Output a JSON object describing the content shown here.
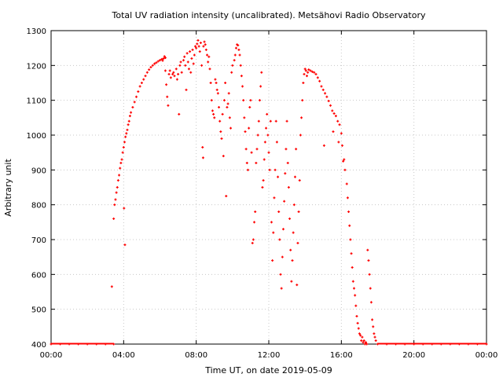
{
  "chart_data": {
    "type": "scatter",
    "title": "Total UV radiation intensity (uncalibrated). Metsähovi Radio Observatory",
    "xlabel": "Time UT, on date 2019-05-09",
    "ylabel": "Arbitrary unit",
    "x_unit": "hours UT",
    "xlim": [
      0,
      24
    ],
    "ylim": [
      400,
      1300
    ],
    "x_ticks": [
      {
        "value": 0,
        "label": "00:00"
      },
      {
        "value": 4,
        "label": "04:00"
      },
      {
        "value": 8,
        "label": "08:00"
      },
      {
        "value": 12,
        "label": "12:00"
      },
      {
        "value": 16,
        "label": "16:00"
      },
      {
        "value": 20,
        "label": "20:00"
      },
      {
        "value": 24,
        "label": "00:00"
      }
    ],
    "y_ticks": [
      {
        "value": 400,
        "label": "400"
      },
      {
        "value": 500,
        "label": "500"
      },
      {
        "value": 600,
        "label": "600"
      },
      {
        "value": 700,
        "label": "700"
      },
      {
        "value": 800,
        "label": "800"
      },
      {
        "value": 900,
        "label": "900"
      },
      {
        "value": 1000,
        "label": "1000"
      },
      {
        "value": 1100,
        "label": "1100"
      },
      {
        "value": 1200,
        "label": "1200"
      },
      {
        "value": 1300,
        "label": "1300"
      }
    ],
    "grid": true,
    "marker_color": "#ff0000",
    "series": [
      {
        "values": [
          [
            0.0,
            400
          ],
          [
            0.5,
            400
          ],
          [
            1.0,
            400
          ],
          [
            1.5,
            400
          ],
          [
            2.0,
            400
          ],
          [
            2.5,
            400
          ],
          [
            3.0,
            400
          ],
          [
            3.45,
            400
          ],
          [
            3.35,
            565
          ],
          [
            3.45,
            760
          ],
          [
            3.5,
            800
          ],
          [
            3.55,
            815
          ],
          [
            3.6,
            835
          ],
          [
            3.65,
            850
          ],
          [
            3.7,
            870
          ],
          [
            3.75,
            885
          ],
          [
            3.8,
            905
          ],
          [
            3.85,
            920
          ],
          [
            3.9,
            930
          ],
          [
            3.95,
            950
          ],
          [
            4.0,
            965
          ],
          [
            4.05,
            980
          ],
          [
            4.02,
            790
          ],
          [
            4.07,
            685
          ],
          [
            4.1,
            995
          ],
          [
            4.15,
            1005
          ],
          [
            4.2,
            1015
          ],
          [
            4.25,
            1030
          ],
          [
            4.3,
            1040
          ],
          [
            4.35,
            1055
          ],
          [
            4.4,
            1065
          ],
          [
            4.5,
            1080
          ],
          [
            4.6,
            1095
          ],
          [
            4.7,
            1110
          ],
          [
            4.8,
            1125
          ],
          [
            4.9,
            1140
          ],
          [
            5.0,
            1150
          ],
          [
            5.1,
            1160
          ],
          [
            5.2,
            1170
          ],
          [
            5.3,
            1180
          ],
          [
            5.4,
            1188
          ],
          [
            5.5,
            1195
          ],
          [
            5.6,
            1200
          ],
          [
            5.7,
            1205
          ],
          [
            5.8,
            1208
          ],
          [
            5.9,
            1212
          ],
          [
            6.0,
            1215
          ],
          [
            6.1,
            1218
          ],
          [
            6.2,
            1220
          ],
          [
            6.3,
            1222
          ],
          [
            6.25,
            1226
          ],
          [
            6.15,
            1214
          ],
          [
            6.3,
            1185
          ],
          [
            6.35,
            1145
          ],
          [
            6.4,
            1110
          ],
          [
            6.45,
            1085
          ],
          [
            6.5,
            1175
          ],
          [
            6.55,
            1185
          ],
          [
            6.6,
            1165
          ],
          [
            6.7,
            1175
          ],
          [
            6.75,
            1180
          ],
          [
            6.8,
            1170
          ],
          [
            6.9,
            1190
          ],
          [
            6.95,
            1160
          ],
          [
            7.0,
            1175
          ],
          [
            7.05,
            1060
          ],
          [
            7.1,
            1200
          ],
          [
            7.15,
            1210
          ],
          [
            7.2,
            1180
          ],
          [
            7.3,
            1215
          ],
          [
            7.35,
            1225
          ],
          [
            7.4,
            1200
          ],
          [
            7.45,
            1130
          ],
          [
            7.5,
            1235
          ],
          [
            7.55,
            1210
          ],
          [
            7.6,
            1190
          ],
          [
            7.65,
            1240
          ],
          [
            7.7,
            1180
          ],
          [
            7.75,
            1220
          ],
          [
            7.8,
            1245
          ],
          [
            7.85,
            1205
          ],
          [
            7.9,
            1230
          ],
          [
            7.95,
            1255
          ],
          [
            8.0,
            1250
          ],
          [
            8.05,
            1262
          ],
          [
            8.1,
            1272
          ],
          [
            8.15,
            1255
          ],
          [
            8.2,
            1240
          ],
          [
            8.25,
            1265
          ],
          [
            8.3,
            1200
          ],
          [
            8.35,
            965
          ],
          [
            8.38,
            935
          ],
          [
            8.4,
            1255
          ],
          [
            8.45,
            1268
          ],
          [
            8.5,
            1260
          ],
          [
            8.55,
            1245
          ],
          [
            8.6,
            1230
          ],
          [
            8.65,
            1210
          ],
          [
            8.7,
            1225
          ],
          [
            8.75,
            1190
          ],
          [
            8.8,
            1150
          ],
          [
            8.85,
            1100
          ],
          [
            8.9,
            1070
          ],
          [
            8.95,
            1060
          ],
          [
            9.0,
            1050
          ],
          [
            9.05,
            1160
          ],
          [
            9.1,
            1150
          ],
          [
            9.15,
            1130
          ],
          [
            9.2,
            1120
          ],
          [
            9.25,
            1080
          ],
          [
            9.3,
            1040
          ],
          [
            9.35,
            1010
          ],
          [
            9.4,
            990
          ],
          [
            9.45,
            1060
          ],
          [
            9.5,
            940
          ],
          [
            9.55,
            1100
          ],
          [
            9.6,
            1150
          ],
          [
            9.65,
            825
          ],
          [
            9.7,
            1080
          ],
          [
            9.75,
            1090
          ],
          [
            9.8,
            1120
          ],
          [
            9.85,
            1050
          ],
          [
            9.9,
            1020
          ],
          [
            9.95,
            1180
          ],
          [
            10.0,
            1200
          ],
          [
            10.1,
            1215
          ],
          [
            10.15,
            1230
          ],
          [
            10.2,
            1250
          ],
          [
            10.25,
            1260
          ],
          [
            10.3,
            1258
          ],
          [
            10.35,
            1245
          ],
          [
            10.4,
            1230
          ],
          [
            10.45,
            1200
          ],
          [
            10.5,
            1170
          ],
          [
            10.55,
            1140
          ],
          [
            10.6,
            1100
          ],
          [
            10.65,
            1050
          ],
          [
            10.7,
            1010
          ],
          [
            10.75,
            960
          ],
          [
            10.8,
            920
          ],
          [
            10.85,
            900
          ],
          [
            10.9,
            1020
          ],
          [
            10.95,
            1080
          ],
          [
            11.0,
            1100
          ],
          [
            11.05,
            950
          ],
          [
            11.1,
            690
          ],
          [
            11.15,
            700
          ],
          [
            11.2,
            750
          ],
          [
            11.25,
            780
          ],
          [
            11.3,
            920
          ],
          [
            11.35,
            960
          ],
          [
            11.4,
            1000
          ],
          [
            11.45,
            1040
          ],
          [
            11.5,
            1100
          ],
          [
            11.55,
            1140
          ],
          [
            11.6,
            1180
          ],
          [
            11.65,
            850
          ],
          [
            11.7,
            870
          ],
          [
            11.75,
            930
          ],
          [
            11.8,
            980
          ],
          [
            11.85,
            1020
          ],
          [
            11.9,
            1060
          ],
          [
            11.95,
            1000
          ],
          [
            12.0,
            950
          ],
          [
            12.05,
            900
          ],
          [
            12.1,
            1040
          ],
          [
            12.15,
            750
          ],
          [
            12.2,
            640
          ],
          [
            12.25,
            720
          ],
          [
            12.3,
            820
          ],
          [
            12.35,
            900
          ],
          [
            12.4,
            1040
          ],
          [
            12.45,
            980
          ],
          [
            12.5,
            880
          ],
          [
            12.55,
            780
          ],
          [
            12.6,
            700
          ],
          [
            12.65,
            600
          ],
          [
            12.7,
            560
          ],
          [
            12.75,
            650
          ],
          [
            12.8,
            730
          ],
          [
            12.85,
            810
          ],
          [
            12.9,
            890
          ],
          [
            12.95,
            960
          ],
          [
            13.0,
            1040
          ],
          [
            13.05,
            920
          ],
          [
            13.1,
            850
          ],
          [
            13.15,
            760
          ],
          [
            13.2,
            670
          ],
          [
            13.25,
            580
          ],
          [
            13.3,
            640
          ],
          [
            13.35,
            720
          ],
          [
            13.4,
            800
          ],
          [
            13.45,
            880
          ],
          [
            13.5,
            960
          ],
          [
            13.55,
            570
          ],
          [
            13.6,
            690
          ],
          [
            13.65,
            780
          ],
          [
            13.7,
            870
          ],
          [
            13.75,
            1000
          ],
          [
            13.8,
            1050
          ],
          [
            13.85,
            1100
          ],
          [
            13.9,
            1150
          ],
          [
            13.95,
            1175
          ],
          [
            14.0,
            1190
          ],
          [
            14.05,
            1185
          ],
          [
            14.1,
            1170
          ],
          [
            14.15,
            1180
          ],
          [
            14.2,
            1188
          ],
          [
            14.3,
            1185
          ],
          [
            14.4,
            1182
          ],
          [
            14.5,
            1180
          ],
          [
            14.6,
            1175
          ],
          [
            14.7,
            1165
          ],
          [
            14.8,
            1155
          ],
          [
            14.9,
            1140
          ],
          [
            15.0,
            1130
          ],
          [
            15.05,
            970
          ],
          [
            15.1,
            1120
          ],
          [
            15.2,
            1110
          ],
          [
            15.3,
            1098
          ],
          [
            15.4,
            1085
          ],
          [
            15.5,
            1070
          ],
          [
            15.55,
            1010
          ],
          [
            15.6,
            1062
          ],
          [
            15.7,
            1055
          ],
          [
            15.8,
            1040
          ],
          [
            15.85,
            980
          ],
          [
            15.9,
            1030
          ],
          [
            16.0,
            1005
          ],
          [
            16.05,
            970
          ],
          [
            16.1,
            925
          ],
          [
            16.15,
            930
          ],
          [
            16.2,
            900
          ],
          [
            16.3,
            860
          ],
          [
            16.35,
            820
          ],
          [
            16.4,
            780
          ],
          [
            16.45,
            740
          ],
          [
            16.5,
            700
          ],
          [
            16.55,
            660
          ],
          [
            16.6,
            620
          ],
          [
            16.65,
            580
          ],
          [
            16.7,
            560
          ],
          [
            16.75,
            540
          ],
          [
            16.8,
            510
          ],
          [
            16.85,
            480
          ],
          [
            16.9,
            460
          ],
          [
            16.95,
            445
          ],
          [
            17.0,
            430
          ],
          [
            17.05,
            425
          ],
          [
            17.1,
            410
          ],
          [
            17.15,
            420
          ],
          [
            17.2,
            405
          ],
          [
            17.25,
            410
          ],
          [
            17.3,
            400
          ],
          [
            17.35,
            405
          ],
          [
            17.4,
            400
          ],
          [
            17.45,
            670
          ],
          [
            17.5,
            640
          ],
          [
            17.55,
            600
          ],
          [
            17.6,
            560
          ],
          [
            17.65,
            520
          ],
          [
            17.7,
            470
          ],
          [
            17.75,
            450
          ],
          [
            17.8,
            430
          ],
          [
            17.85,
            420
          ],
          [
            17.9,
            410
          ],
          [
            18.0,
            400
          ],
          [
            18.5,
            400
          ],
          [
            19.0,
            400
          ],
          [
            19.5,
            400
          ],
          [
            20.0,
            400
          ],
          [
            20.5,
            400
          ],
          [
            21.0,
            400
          ],
          [
            21.5,
            400
          ],
          [
            22.0,
            400
          ],
          [
            22.5,
            400
          ],
          [
            23.0,
            400
          ],
          [
            23.5,
            400
          ],
          [
            24.0,
            400
          ]
        ]
      }
    ]
  }
}
